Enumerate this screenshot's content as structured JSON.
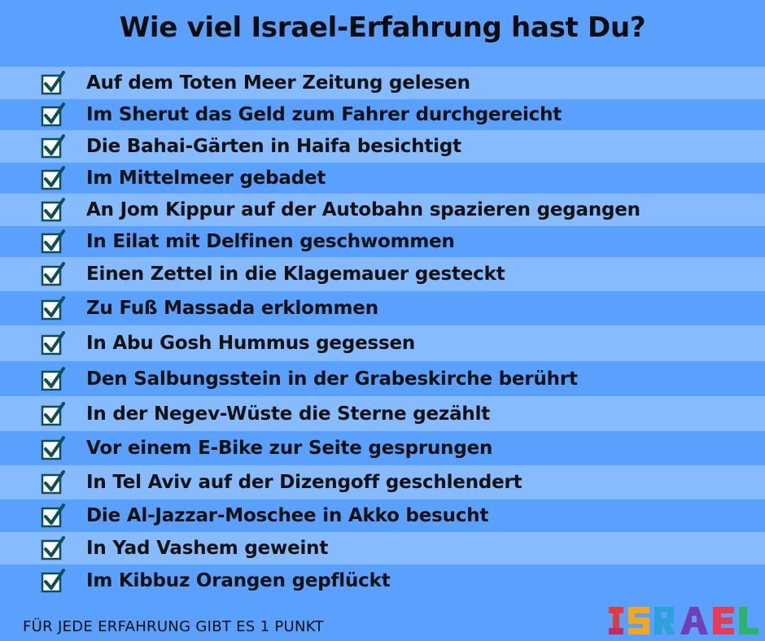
{
  "title": "Wie viel Israel-Erfahrung hast Du?",
  "items": [
    "Auf dem Toten Meer Zeitung gelesen",
    "Im Sherut das Geld zum Fahrer durchgereicht",
    "Die Bahai-Gärten in Haifa besichtigt",
    "Im Mittelmeer gebadet",
    "An Jom Kippur auf der Autobahn spazieren gegangen",
    "In Eilat mit Delfinen geschwommen",
    "Einen Zettel in die Klagemauer gesteckt",
    "Zu Fuß Massada erklommen",
    "In Abu Gosh Hummus gegessen",
    "Den Salbungsstein in der Grabeskirche berührt",
    "In der Negev-Wüste die Sterne gezählt",
    "Vor einem E-Bike zur Seite gesprungen",
    "In Tel Aviv auf der Dizengoff geschlendert",
    "Die Al-Jazzar-Moschee in Akko besucht",
    "In Yad Vashem geweint",
    "Im Kibbuz Orangen gepflückt"
  ],
  "footer": "FÜR JEDE ERFAHRUNG GIBT ES 1 PUNKT",
  "logo_text": "ISRAEL",
  "colors": {
    "background": "#5aa0ff",
    "band_light": "#86bbff",
    "checkbox_stroke": "#0d4f57",
    "check_mark": "#0d4f57"
  },
  "icons": {
    "item_check": "checked-box-icon",
    "brand": "israel-logo"
  }
}
